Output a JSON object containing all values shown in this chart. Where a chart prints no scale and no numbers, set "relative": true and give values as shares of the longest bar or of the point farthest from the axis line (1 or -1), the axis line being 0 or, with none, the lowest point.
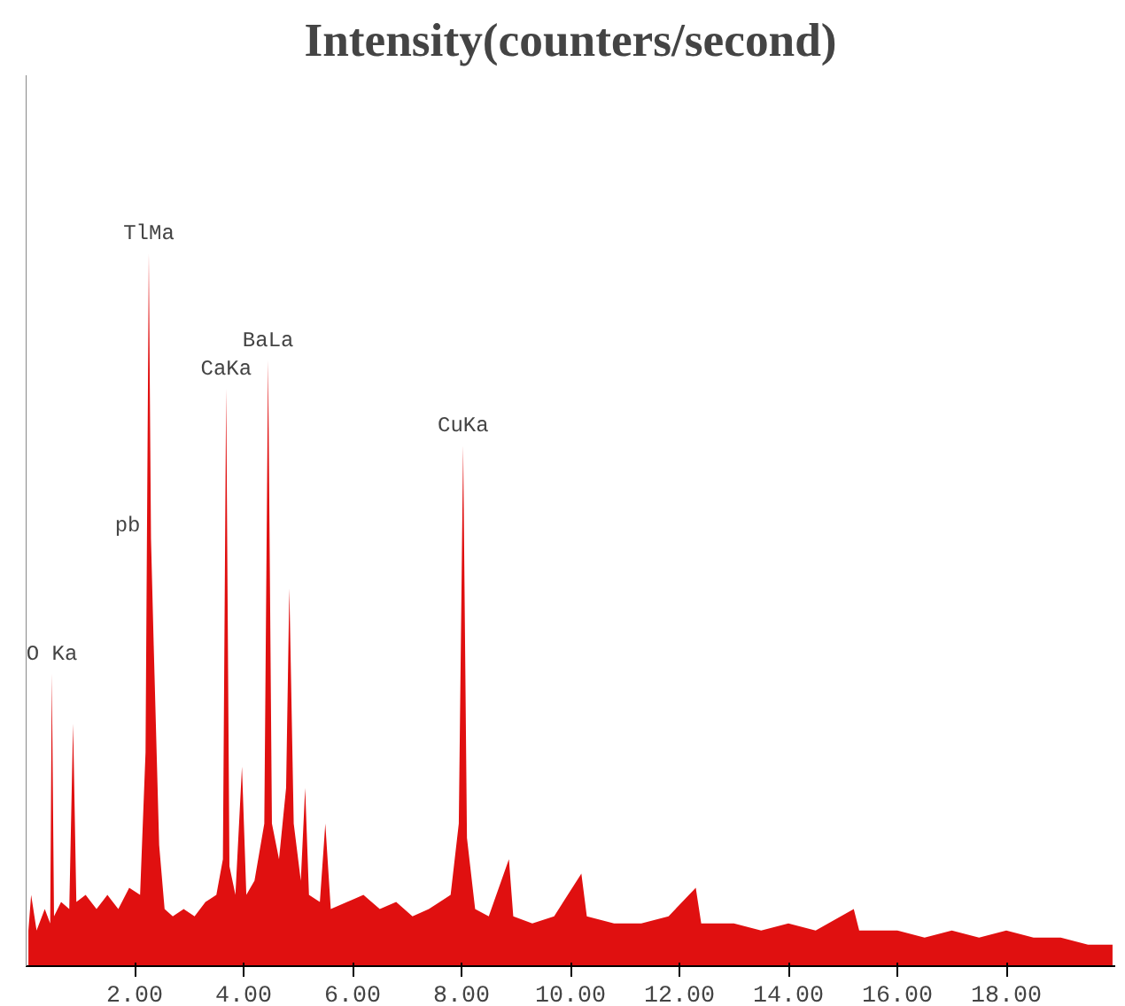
{
  "chart_data": {
    "type": "area",
    "title": "Intensity(counters/second)",
    "relative": true,
    "color": "#e01010",
    "grid": false,
    "tick_labels": "x",
    "xlim": [
      0,
      20
    ],
    "xticks": [
      {
        "value": 2,
        "label": "2.00"
      },
      {
        "value": 4,
        "label": "4.00"
      },
      {
        "value": 6,
        "label": "6.00"
      },
      {
        "value": 8,
        "label": "8.00"
      },
      {
        "value": 10,
        "label": "10.00"
      },
      {
        "value": 12,
        "label": "12.00"
      },
      {
        "value": 14,
        "label": "14.00"
      },
      {
        "value": 16,
        "label": "16.00"
      },
      {
        "value": 18,
        "label": "18.00"
      }
    ],
    "x": [
      0.05,
      0.1,
      0.2,
      0.35,
      0.45,
      0.48,
      0.52,
      0.65,
      0.8,
      0.87,
      0.93,
      1.1,
      1.3,
      1.5,
      1.7,
      1.9,
      2.1,
      2.2,
      2.26,
      2.3,
      2.35,
      2.45,
      2.55,
      2.7,
      2.9,
      3.1,
      3.3,
      3.5,
      3.62,
      3.68,
      3.74,
      3.85,
      3.97,
      4.05,
      4.2,
      4.38,
      4.45,
      4.52,
      4.65,
      4.78,
      4.84,
      4.92,
      5.05,
      5.13,
      5.2,
      5.4,
      5.5,
      5.6,
      5.9,
      6.2,
      6.5,
      6.8,
      7.1,
      7.4,
      7.8,
      7.95,
      8.03,
      8.1,
      8.25,
      8.5,
      8.87,
      8.95,
      9.3,
      9.7,
      10.2,
      10.3,
      10.8,
      11.3,
      11.8,
      12.3,
      12.4,
      13.0,
      13.5,
      14.0,
      14.5,
      15.2,
      15.3,
      16.0,
      16.5,
      17.0,
      17.5,
      18.0,
      18.5,
      19.0,
      19.5,
      19.95
    ],
    "values": [
      0.05,
      0.1,
      0.05,
      0.08,
      0.06,
      0.41,
      0.07,
      0.09,
      0.08,
      0.34,
      0.09,
      0.1,
      0.08,
      0.1,
      0.08,
      0.11,
      0.1,
      0.3,
      1.0,
      0.6,
      0.45,
      0.17,
      0.08,
      0.07,
      0.08,
      0.07,
      0.09,
      0.1,
      0.15,
      0.81,
      0.14,
      0.1,
      0.28,
      0.1,
      0.12,
      0.2,
      0.85,
      0.2,
      0.15,
      0.25,
      0.53,
      0.2,
      0.12,
      0.25,
      0.1,
      0.09,
      0.2,
      0.08,
      0.09,
      0.1,
      0.08,
      0.09,
      0.07,
      0.08,
      0.1,
      0.2,
      0.73,
      0.18,
      0.08,
      0.07,
      0.15,
      0.07,
      0.06,
      0.07,
      0.13,
      0.07,
      0.06,
      0.06,
      0.07,
      0.11,
      0.06,
      0.06,
      0.05,
      0.06,
      0.05,
      0.08,
      0.05,
      0.05,
      0.04,
      0.05,
      0.04,
      0.05,
      0.04,
      0.04,
      0.03,
      0.03
    ],
    "annotations": [
      {
        "text": "O Ka",
        "x": 0.48,
        "y": 0.41
      },
      {
        "text": "TlMa",
        "x": 2.26,
        "y": 1.0
      },
      {
        "text": "pb",
        "x": 2.3,
        "y": 0.6
      },
      {
        "text": "CaKa",
        "x": 3.68,
        "y": 0.81
      },
      {
        "text": "BaLa",
        "x": 4.45,
        "y": 0.85
      },
      {
        "text": "CuKa",
        "x": 8.03,
        "y": 0.73
      }
    ]
  }
}
